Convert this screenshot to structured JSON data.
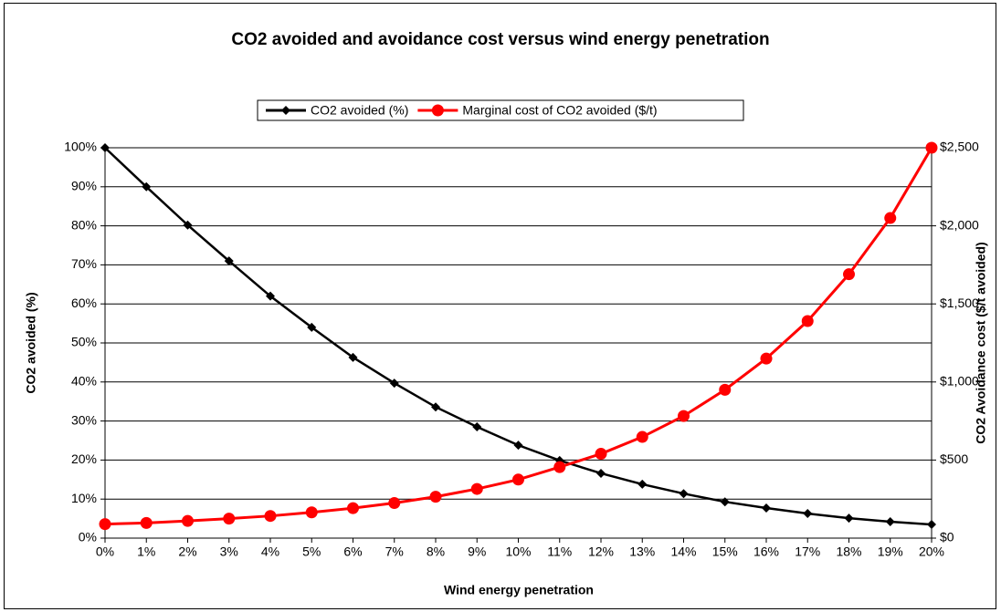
{
  "chart_data": {
    "type": "line",
    "title": "CO2 avoided and avoidance cost versus wind energy penetration",
    "x_label": "Wind energy penetration",
    "y_label": "CO2 avoided (%)",
    "y2_label": "CO2 Avoidance cost ($/t avoided)",
    "categories": [
      "0%",
      "1%",
      "2%",
      "3%",
      "4%",
      "5%",
      "6%",
      "7%",
      "8%",
      "9%",
      "10%",
      "11%",
      "12%",
      "13%",
      "14%",
      "15%",
      "16%",
      "17%",
      "18%",
      "19%",
      "20%"
    ],
    "series": [
      {
        "name": "CO2 avoided (%)",
        "color": "#000000",
        "marker": "diamond",
        "values": [
          100,
          90,
          80.2,
          71,
          62,
          54,
          46.3,
          39.7,
          33.6,
          28.5,
          23.8,
          19.9,
          16.6,
          13.8,
          11.4,
          9.3,
          7.7,
          6.3,
          5.1,
          4.2,
          3.5
        ]
      },
      {
        "name": "Marginal cost of CO2 avoided ($/t)",
        "color": "#ff0000",
        "marker": "circle",
        "axis": "y2",
        "values": [
          90,
          97,
          110,
          125,
          142,
          165,
          192,
          225,
          265,
          315,
          375,
          455,
          540,
          648,
          782,
          950,
          1150,
          1390,
          1690,
          2050,
          2500
        ]
      }
    ],
    "ylim": [
      0,
      100
    ],
    "yticks": [
      {
        "value": 0,
        "label": "0%"
      },
      {
        "value": 10,
        "label": "10%"
      },
      {
        "value": 20,
        "label": "20%"
      },
      {
        "value": 30,
        "label": "30%"
      },
      {
        "value": 40,
        "label": "40%"
      },
      {
        "value": 50,
        "label": "50%"
      },
      {
        "value": 60,
        "label": "60%"
      },
      {
        "value": 70,
        "label": "70%"
      },
      {
        "value": 80,
        "label": "80%"
      },
      {
        "value": 90,
        "label": "90%"
      },
      {
        "value": 100,
        "label": "100%"
      }
    ],
    "y2lim": [
      0,
      2500
    ],
    "y2ticks": [
      {
        "value": 0,
        "label": "$0"
      },
      {
        "value": 500,
        "label": "$500"
      },
      {
        "value": 1000,
        "label": "$1,000"
      },
      {
        "value": 1500,
        "label": "$1,500"
      },
      {
        "value": 2000,
        "label": "$2,000"
      },
      {
        "value": 2500,
        "label": "$2,500"
      }
    ],
    "grid": true,
    "legend": "top"
  }
}
